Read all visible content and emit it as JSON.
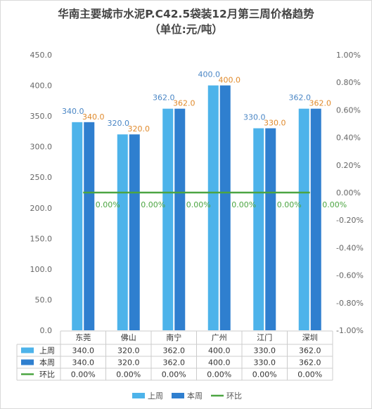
{
  "chart_data": {
    "type": "bar",
    "title": "华南主要城市水泥P.C42.5袋装12月第三周价格趋势",
    "subtitle": "（单位:元/吨）",
    "categories": [
      "东莞",
      "佛山",
      "南宁",
      "广州",
      "江门",
      "深圳"
    ],
    "series": [
      {
        "name": "上周",
        "type": "bar",
        "axis": "left",
        "color": "#4db3ea",
        "values": [
          340.0,
          320.0,
          362.0,
          400.0,
          330.0,
          362.0
        ],
        "labels": [
          "340.0",
          "320.0",
          "362.0",
          "400.0",
          "330.0",
          "362.0"
        ]
      },
      {
        "name": "本周",
        "type": "bar",
        "axis": "left",
        "color": "#2f7fcf",
        "values": [
          340.0,
          320.0,
          362.0,
          400.0,
          330.0,
          362.0
        ],
        "labels": [
          "340.0",
          "320.0",
          "362.0",
          "400.0",
          "330.0",
          "362.0"
        ]
      },
      {
        "name": "环比",
        "type": "line",
        "axis": "right",
        "color": "#4ca542",
        "values": [
          0.0,
          0.0,
          0.0,
          0.0,
          0.0,
          0.0
        ],
        "labels": [
          "0.00%",
          "0.00%",
          "0.00%",
          "0.00%",
          "0.00%",
          "0.00%"
        ]
      }
    ],
    "ylim": [
      0,
      450
    ],
    "y2lim": [
      -1.0,
      1.0
    ],
    "yticks": [
      "0.0",
      "50.0",
      "100.0",
      "150.0",
      "200.0",
      "250.0",
      "300.0",
      "350.0",
      "400.0",
      "450.0"
    ],
    "y2ticks": [
      "-1.00%",
      "-0.80%",
      "-0.60%",
      "-0.40%",
      "-0.20%",
      "0.00%",
      "0.20%",
      "0.40%",
      "0.60%",
      "0.80%",
      "1.00%"
    ],
    "grid": false,
    "legend": "bottom",
    "data_table": true
  }
}
